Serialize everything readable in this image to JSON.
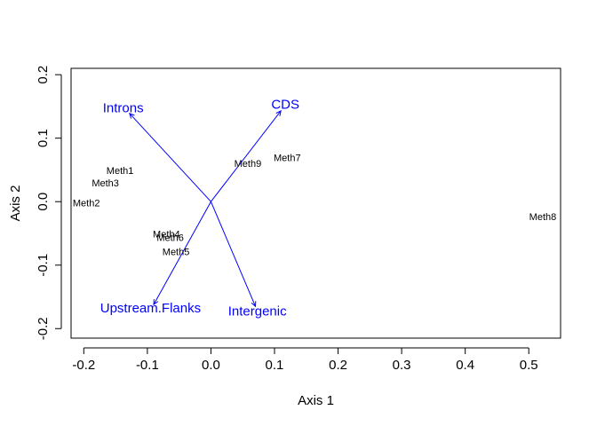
{
  "chart_data": {
    "type": "scatter",
    "xlabel": "Axis 1",
    "ylabel": "Axis 2",
    "xlim": [
      -0.22,
      0.55
    ],
    "ylim": [
      -0.215,
      0.21
    ],
    "x_ticks": [
      -0.2,
      -0.1,
      0.0,
      0.1,
      0.2,
      0.3,
      0.4,
      0.5
    ],
    "x_tick_labels": [
      "-0.2",
      "-0.1",
      "0.0",
      "0.1",
      "0.2",
      "0.3",
      "0.4",
      "0.5"
    ],
    "y_ticks": [
      -0.2,
      -0.1,
      0.0,
      0.1,
      0.2
    ],
    "y_tick_labels": [
      "-0.2",
      "-0.1",
      "0.0",
      "0.1",
      "0.2"
    ],
    "grid": false,
    "points": [
      {
        "label": "Meth1",
        "x": -0.143,
        "y": 0.048
      },
      {
        "label": "Meth3",
        "x": -0.166,
        "y": 0.028
      },
      {
        "label": "Meth2",
        "x": -0.196,
        "y": -0.003
      },
      {
        "label": "Meth9",
        "x": 0.058,
        "y": 0.059
      },
      {
        "label": "Meth7",
        "x": 0.12,
        "y": 0.068
      },
      {
        "label": "Meth8",
        "x": 0.522,
        "y": -0.025
      },
      {
        "label": "Meth4",
        "x": -0.07,
        "y": -0.052
      },
      {
        "label": "Meth6",
        "x": -0.064,
        "y": -0.058
      },
      {
        "label": "Meth5",
        "x": -0.055,
        "y": -0.08
      }
    ],
    "vectors": [
      {
        "label": "Introns",
        "x": -0.128,
        "y": 0.139,
        "label_x": -0.138,
        "label_y": 0.146
      },
      {
        "label": "CDS",
        "x": 0.11,
        "y": 0.143,
        "label_x": 0.117,
        "label_y": 0.152
      },
      {
        "label": "Upstream.Flanks",
        "x": -0.09,
        "y": -0.162,
        "label_x": -0.095,
        "label_y": -0.169
      },
      {
        "label": "Intergenic",
        "x": 0.07,
        "y": -0.165,
        "label_x": 0.073,
        "label_y": -0.174
      }
    ],
    "vector_color": "#0000ff",
    "point_color": "#000000"
  }
}
